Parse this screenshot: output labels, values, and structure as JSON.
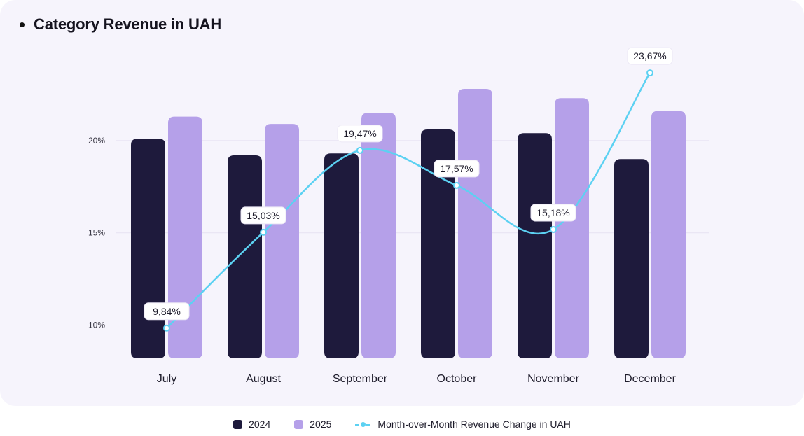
{
  "title": "Category Revenue in UAH",
  "chart_data": {
    "type": "bar",
    "categories": [
      "July",
      "August",
      "September",
      "October",
      "November",
      "December"
    ],
    "series": [
      {
        "name": "2024",
        "type": "bar",
        "color": "#1e1a3c",
        "values": [
          20.1,
          19.2,
          19.3,
          20.6,
          20.4,
          19.0
        ]
      },
      {
        "name": "2025",
        "type": "bar",
        "color": "#b5a0e9",
        "values": [
          21.3,
          20.9,
          21.5,
          22.8,
          22.3,
          21.6
        ]
      },
      {
        "name": "Month-over-Month Revenue Change in UAH",
        "type": "line",
        "color": "#5cd1f2",
        "values": [
          9.84,
          15.03,
          19.47,
          17.57,
          15.18,
          23.67
        ],
        "labels": [
          "9,84%",
          "15,03%",
          "19,47%",
          "17,57%",
          "15,18%",
          "23,67%"
        ]
      }
    ],
    "yticks": [
      "10%",
      "15%",
      "20%"
    ],
    "ytick_values": [
      10,
      15,
      20
    ],
    "ylim": [
      8.2,
      25
    ],
    "grid": true,
    "legend_position": "bottom"
  }
}
